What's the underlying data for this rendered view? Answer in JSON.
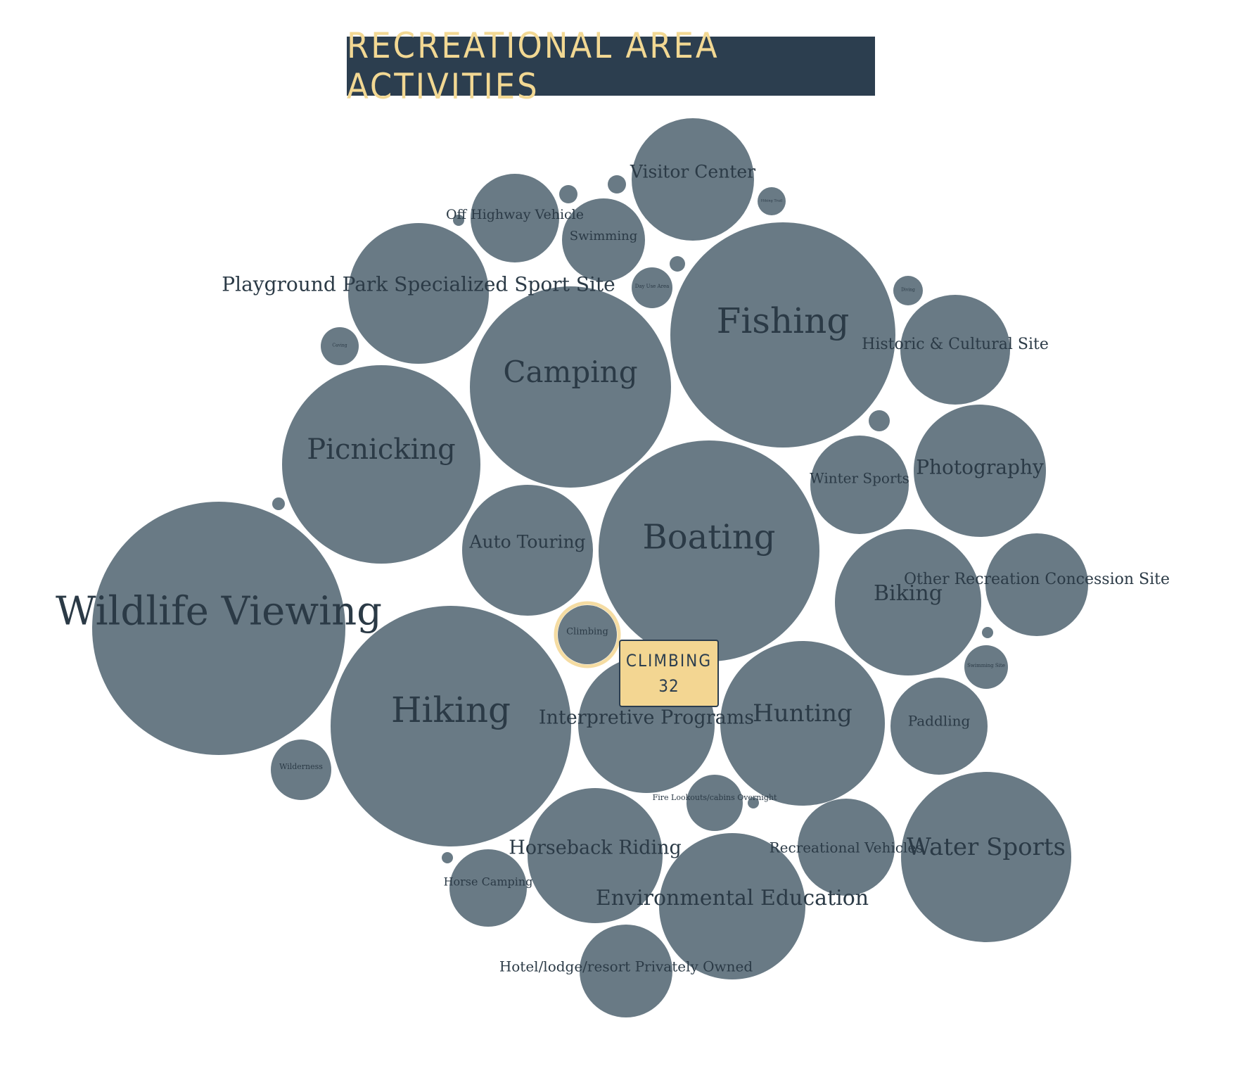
{
  "title": "RECREATIONAL AREA ACTIVITIES",
  "colors": {
    "bubble": "#697a85",
    "label": "#2b3a46",
    "title_bg": "#2c3e4f",
    "title_text": "#f2d893",
    "highlight": "#f3d692"
  },
  "tooltip": {
    "name": "CLIMBING",
    "value": "32"
  },
  "chart_data": {
    "type": "bubble",
    "title": "RECREATIONAL AREA ACTIVITIES",
    "highlighted": "Climbing",
    "bubbles": [
      {
        "name": "Wildlife Viewing"
      },
      {
        "name": "Hiking"
      },
      {
        "name": "Fishing"
      },
      {
        "name": "Boating"
      },
      {
        "name": "Camping"
      },
      {
        "name": "Picnicking"
      },
      {
        "name": "Water Sports"
      },
      {
        "name": "Hunting"
      },
      {
        "name": "Environmental Education"
      },
      {
        "name": "Playground Park Specialized Sport Site"
      },
      {
        "name": "Interpretive Programs"
      },
      {
        "name": "Photography"
      },
      {
        "name": "Biking"
      },
      {
        "name": "Horseback Riding"
      },
      {
        "name": "Auto Touring"
      },
      {
        "name": "Visitor Center"
      },
      {
        "name": "Other Recreation Concession Site"
      },
      {
        "name": "Historic & Cultural Site"
      },
      {
        "name": "Winter Sports"
      },
      {
        "name": "Paddling"
      },
      {
        "name": "Recreational Vehicles"
      },
      {
        "name": "Off Highway Vehicle"
      },
      {
        "name": "Swimming"
      },
      {
        "name": "Hotel/lodge/resort Privately Owned"
      },
      {
        "name": "Horse Camping"
      },
      {
        "name": "Climbing",
        "value": 32
      },
      {
        "name": "Wilderness"
      },
      {
        "name": "Fire Lookouts/cabins Overnight"
      },
      {
        "name": "Day Use Area"
      },
      {
        "name": "Swimming Site"
      },
      {
        "name": "Diving"
      },
      {
        "name": "Caving"
      },
      {
        "name": "Hiking Trail"
      }
    ]
  }
}
